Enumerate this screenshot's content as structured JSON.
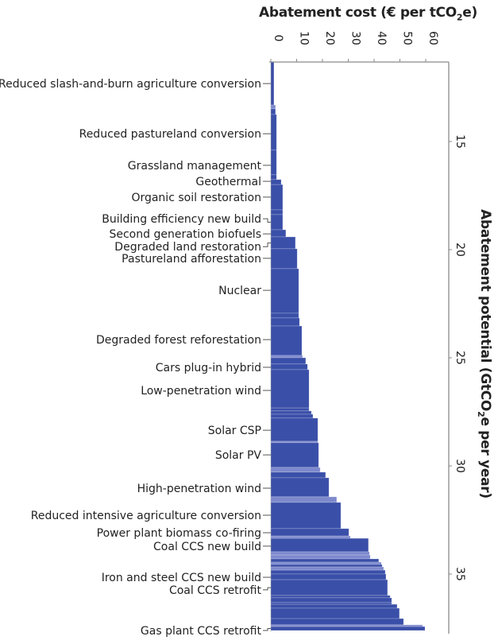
{
  "chart_data": {
    "type": "bar",
    "orientation": "marginal-abatement-cost-curve",
    "title": "",
    "xlabel": "Abatement cost (€ per tCO2e)",
    "xlabel_main": "Abatement cost (€ per tCO",
    "xlabel_sub": "2",
    "xlabel_end": "e)",
    "ylabel": "Abatement potential (GtCO2e per year)",
    "ylabel_main": "Abatement potential (GtCO",
    "ylabel_sub": "2",
    "ylabel_end": "e per year)",
    "xlim": [
      0,
      69
    ],
    "ylim": [
      11.3,
      37.7
    ],
    "x_ticks": [
      0,
      10,
      20,
      30,
      40,
      50,
      60
    ],
    "x_tick_labels": [
      "0",
      "10",
      "20",
      "30",
      "40",
      "50",
      "60"
    ],
    "y_ticks": [
      15,
      20,
      25,
      30,
      35
    ],
    "y_tick_labels": [
      "15",
      "20",
      "25",
      "30",
      "35"
    ],
    "colors": {
      "bar": "#3a4fa8",
      "bar_light": "#7d89cc",
      "axis": "#8a8a8a"
    },
    "bars": [
      {
        "start": 11.32,
        "end": 13.31,
        "cost": 1.2,
        "light": false
      },
      {
        "start": 13.31,
        "end": 13.49,
        "cost": 1.8,
        "light": true
      },
      {
        "start": 13.49,
        "end": 13.75,
        "cost": 1.8,
        "light": false
      },
      {
        "start": 13.75,
        "end": 15.4,
        "cost": 2.2,
        "light": false
      },
      {
        "start": 15.4,
        "end": 16.54,
        "cost": 2.2,
        "light": false
      },
      {
        "start": 16.54,
        "end": 16.76,
        "cost": 2.2,
        "light": false
      },
      {
        "start": 16.76,
        "end": 16.99,
        "cost": 4.0,
        "light": false
      },
      {
        "start": 16.99,
        "end": 18.16,
        "cost": 4.6,
        "light": false
      },
      {
        "start": 18.16,
        "end": 18.38,
        "cost": 4.6,
        "light": false
      },
      {
        "start": 18.38,
        "end": 19.08,
        "cost": 4.6,
        "light": false
      },
      {
        "start": 19.08,
        "end": 19.41,
        "cost": 5.8,
        "light": false
      },
      {
        "start": 19.41,
        "end": 19.96,
        "cost": 9.5,
        "light": false
      },
      {
        "start": 19.96,
        "end": 20.88,
        "cost": 10.2,
        "light": false
      },
      {
        "start": 20.88,
        "end": 22.94,
        "cost": 10.8,
        "light": false
      },
      {
        "start": 22.94,
        "end": 23.16,
        "cost": 10.8,
        "light": false
      },
      {
        "start": 23.16,
        "end": 23.53,
        "cost": 11.1,
        "light": false
      },
      {
        "start": 23.53,
        "end": 24.89,
        "cost": 12.0,
        "light": false
      },
      {
        "start": 24.89,
        "end": 25.0,
        "cost": 12.3,
        "light": true
      },
      {
        "start": 25.0,
        "end": 25.29,
        "cost": 13.5,
        "light": false
      },
      {
        "start": 25.29,
        "end": 25.55,
        "cost": 14.2,
        "light": false
      },
      {
        "start": 25.55,
        "end": 27.32,
        "cost": 14.8,
        "light": false
      },
      {
        "start": 27.32,
        "end": 27.46,
        "cost": 14.8,
        "light": false
      },
      {
        "start": 27.46,
        "end": 27.61,
        "cost": 15.7,
        "light": false
      },
      {
        "start": 27.61,
        "end": 27.79,
        "cost": 16.3,
        "light": false
      },
      {
        "start": 27.79,
        "end": 28.86,
        "cost": 18.2,
        "light": false
      },
      {
        "start": 28.86,
        "end": 28.93,
        "cost": 18.2,
        "light": true
      },
      {
        "start": 28.93,
        "end": 30.07,
        "cost": 18.5,
        "light": false
      },
      {
        "start": 30.07,
        "end": 30.29,
        "cost": 19.1,
        "light": true
      },
      {
        "start": 30.29,
        "end": 30.55,
        "cost": 21.2,
        "light": false
      },
      {
        "start": 30.55,
        "end": 31.43,
        "cost": 22.5,
        "light": false
      },
      {
        "start": 31.43,
        "end": 31.69,
        "cost": 25.5,
        "light": true
      },
      {
        "start": 31.69,
        "end": 32.9,
        "cost": 27.1,
        "light": false
      },
      {
        "start": 32.9,
        "end": 33.24,
        "cost": 30.2,
        "light": false
      },
      {
        "start": 33.24,
        "end": 33.35,
        "cost": 30.8,
        "light": true
      },
      {
        "start": 33.35,
        "end": 33.97,
        "cost": 37.8,
        "light": false
      },
      {
        "start": 33.97,
        "end": 34.12,
        "cost": 38.2,
        "light": true
      },
      {
        "start": 34.12,
        "end": 34.3,
        "cost": 38.5,
        "light": true
      },
      {
        "start": 34.3,
        "end": 34.45,
        "cost": 41.8,
        "light": false
      },
      {
        "start": 34.45,
        "end": 34.56,
        "cost": 42.8,
        "light": true
      },
      {
        "start": 34.56,
        "end": 34.67,
        "cost": 43.1,
        "light": false
      },
      {
        "start": 34.67,
        "end": 34.82,
        "cost": 43.7,
        "light": true
      },
      {
        "start": 34.82,
        "end": 35.0,
        "cost": 44.3,
        "light": false
      },
      {
        "start": 35.0,
        "end": 35.26,
        "cost": 44.6,
        "light": false
      },
      {
        "start": 35.26,
        "end": 35.99,
        "cost": 45.2,
        "light": false
      },
      {
        "start": 35.99,
        "end": 36.1,
        "cost": 46.2,
        "light": false
      },
      {
        "start": 36.1,
        "end": 36.32,
        "cost": 46.8,
        "light": false
      },
      {
        "start": 36.32,
        "end": 36.4,
        "cost": 46.8,
        "light": false
      },
      {
        "start": 36.4,
        "end": 36.58,
        "cost": 48.9,
        "light": false
      },
      {
        "start": 36.58,
        "end": 37.06,
        "cost": 49.8,
        "light": false
      },
      {
        "start": 37.06,
        "end": 37.35,
        "cost": 51.4,
        "light": false
      },
      {
        "start": 37.35,
        "end": 37.43,
        "cost": 58.8,
        "light": true
      },
      {
        "start": 37.43,
        "end": 37.61,
        "cost": 59.7,
        "light": false
      }
    ],
    "categories": [
      {
        "label": "Reduced slash-and-burn agriculture conversion",
        "potential": 12.32,
        "bar_potential": 12.32
      },
      {
        "label": "Reduced pastureland conversion",
        "potential": 14.64,
        "bar_potential": 14.64
      },
      {
        "label": "Grassland management",
        "potential": 16.1,
        "bar_potential": 16.1
      },
      {
        "label": "Geothermal",
        "potential": 16.84,
        "bar_potential": 16.87
      },
      {
        "label": "Organic soil restoration",
        "potential": 17.57,
        "bar_potential": 17.57
      },
      {
        "label": "Building efficiency new build",
        "potential": 18.57,
        "bar_potential": 18.73
      },
      {
        "label": "Second generation biofuels",
        "potential": 19.27,
        "bar_potential": 19.25
      },
      {
        "label": "Degraded land restoration",
        "potential": 19.86,
        "bar_potential": 19.69
      },
      {
        "label": "Pastureland afforestation",
        "potential": 20.4,
        "bar_potential": 20.42
      },
      {
        "label": "Nuclear",
        "potential": 21.88,
        "bar_potential": 21.88
      },
      {
        "label": "Degraded forest reforestation",
        "potential": 24.16,
        "bar_potential": 24.21
      },
      {
        "label": "Cars plug-in hybrid",
        "potential": 25.44,
        "bar_potential": 25.42
      },
      {
        "label": "Low-penetration wind",
        "potential": 26.51,
        "bar_potential": 26.51
      },
      {
        "label": "Solar CSP",
        "potential": 28.35,
        "bar_potential": 28.33
      },
      {
        "label": "Solar PV",
        "potential": 29.49,
        "bar_potential": 29.49
      },
      {
        "label": "High-penetration wind",
        "potential": 31.03,
        "bar_potential": 30.99
      },
      {
        "label": "Reduced intensive agriculture conversion",
        "potential": 32.28,
        "bar_potential": 32.3
      },
      {
        "label": "Power plant biomass co-firing",
        "potential": 33.09,
        "bar_potential": 33.07
      },
      {
        "label": "Coal CCS new build",
        "potential": 33.71,
        "bar_potential": 33.66
      },
      {
        "label": "Iron and steel CCS new build",
        "potential": 35.15,
        "bar_potential": 35.13
      },
      {
        "label": "Coal CCS retrofit",
        "potential": 35.73,
        "bar_potential": 35.63
      },
      {
        "label": "Gas plant CCS retrofit",
        "potential": 37.61,
        "bar_potential": 37.52
      }
    ]
  }
}
